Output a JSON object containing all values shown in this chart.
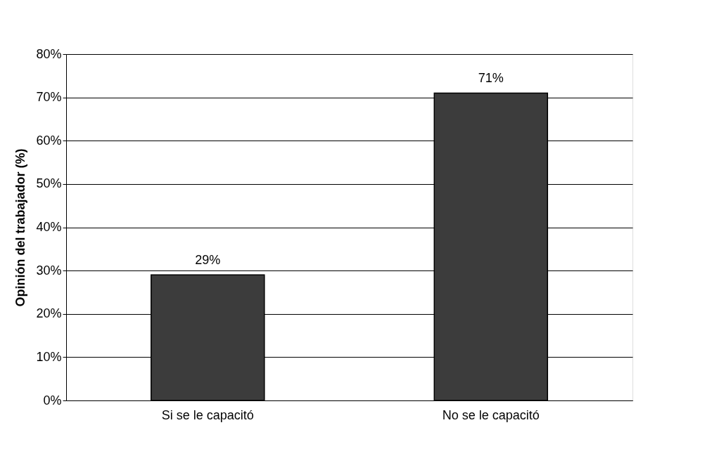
{
  "chart_data": {
    "type": "bar",
    "ylabel": "Opinión del trabajador (%)",
    "categories": [
      "Si se le capacitó",
      "No se le capacitó"
    ],
    "values": [
      29,
      71
    ],
    "value_labels": [
      "29%",
      "71%"
    ],
    "color": "#3c3c3c",
    "ylim": [
      0,
      80
    ],
    "yticks": [
      {
        "value": 0,
        "label": "0%"
      },
      {
        "value": 10,
        "label": "10%"
      },
      {
        "value": 20,
        "label": "20%"
      },
      {
        "value": 30,
        "label": "30%"
      },
      {
        "value": 40,
        "label": "40%"
      },
      {
        "value": 50,
        "label": "50%"
      },
      {
        "value": 60,
        "label": "60%"
      },
      {
        "value": 70,
        "label": "70%"
      },
      {
        "value": 80,
        "label": "80%"
      }
    ],
    "grid": "y"
  }
}
